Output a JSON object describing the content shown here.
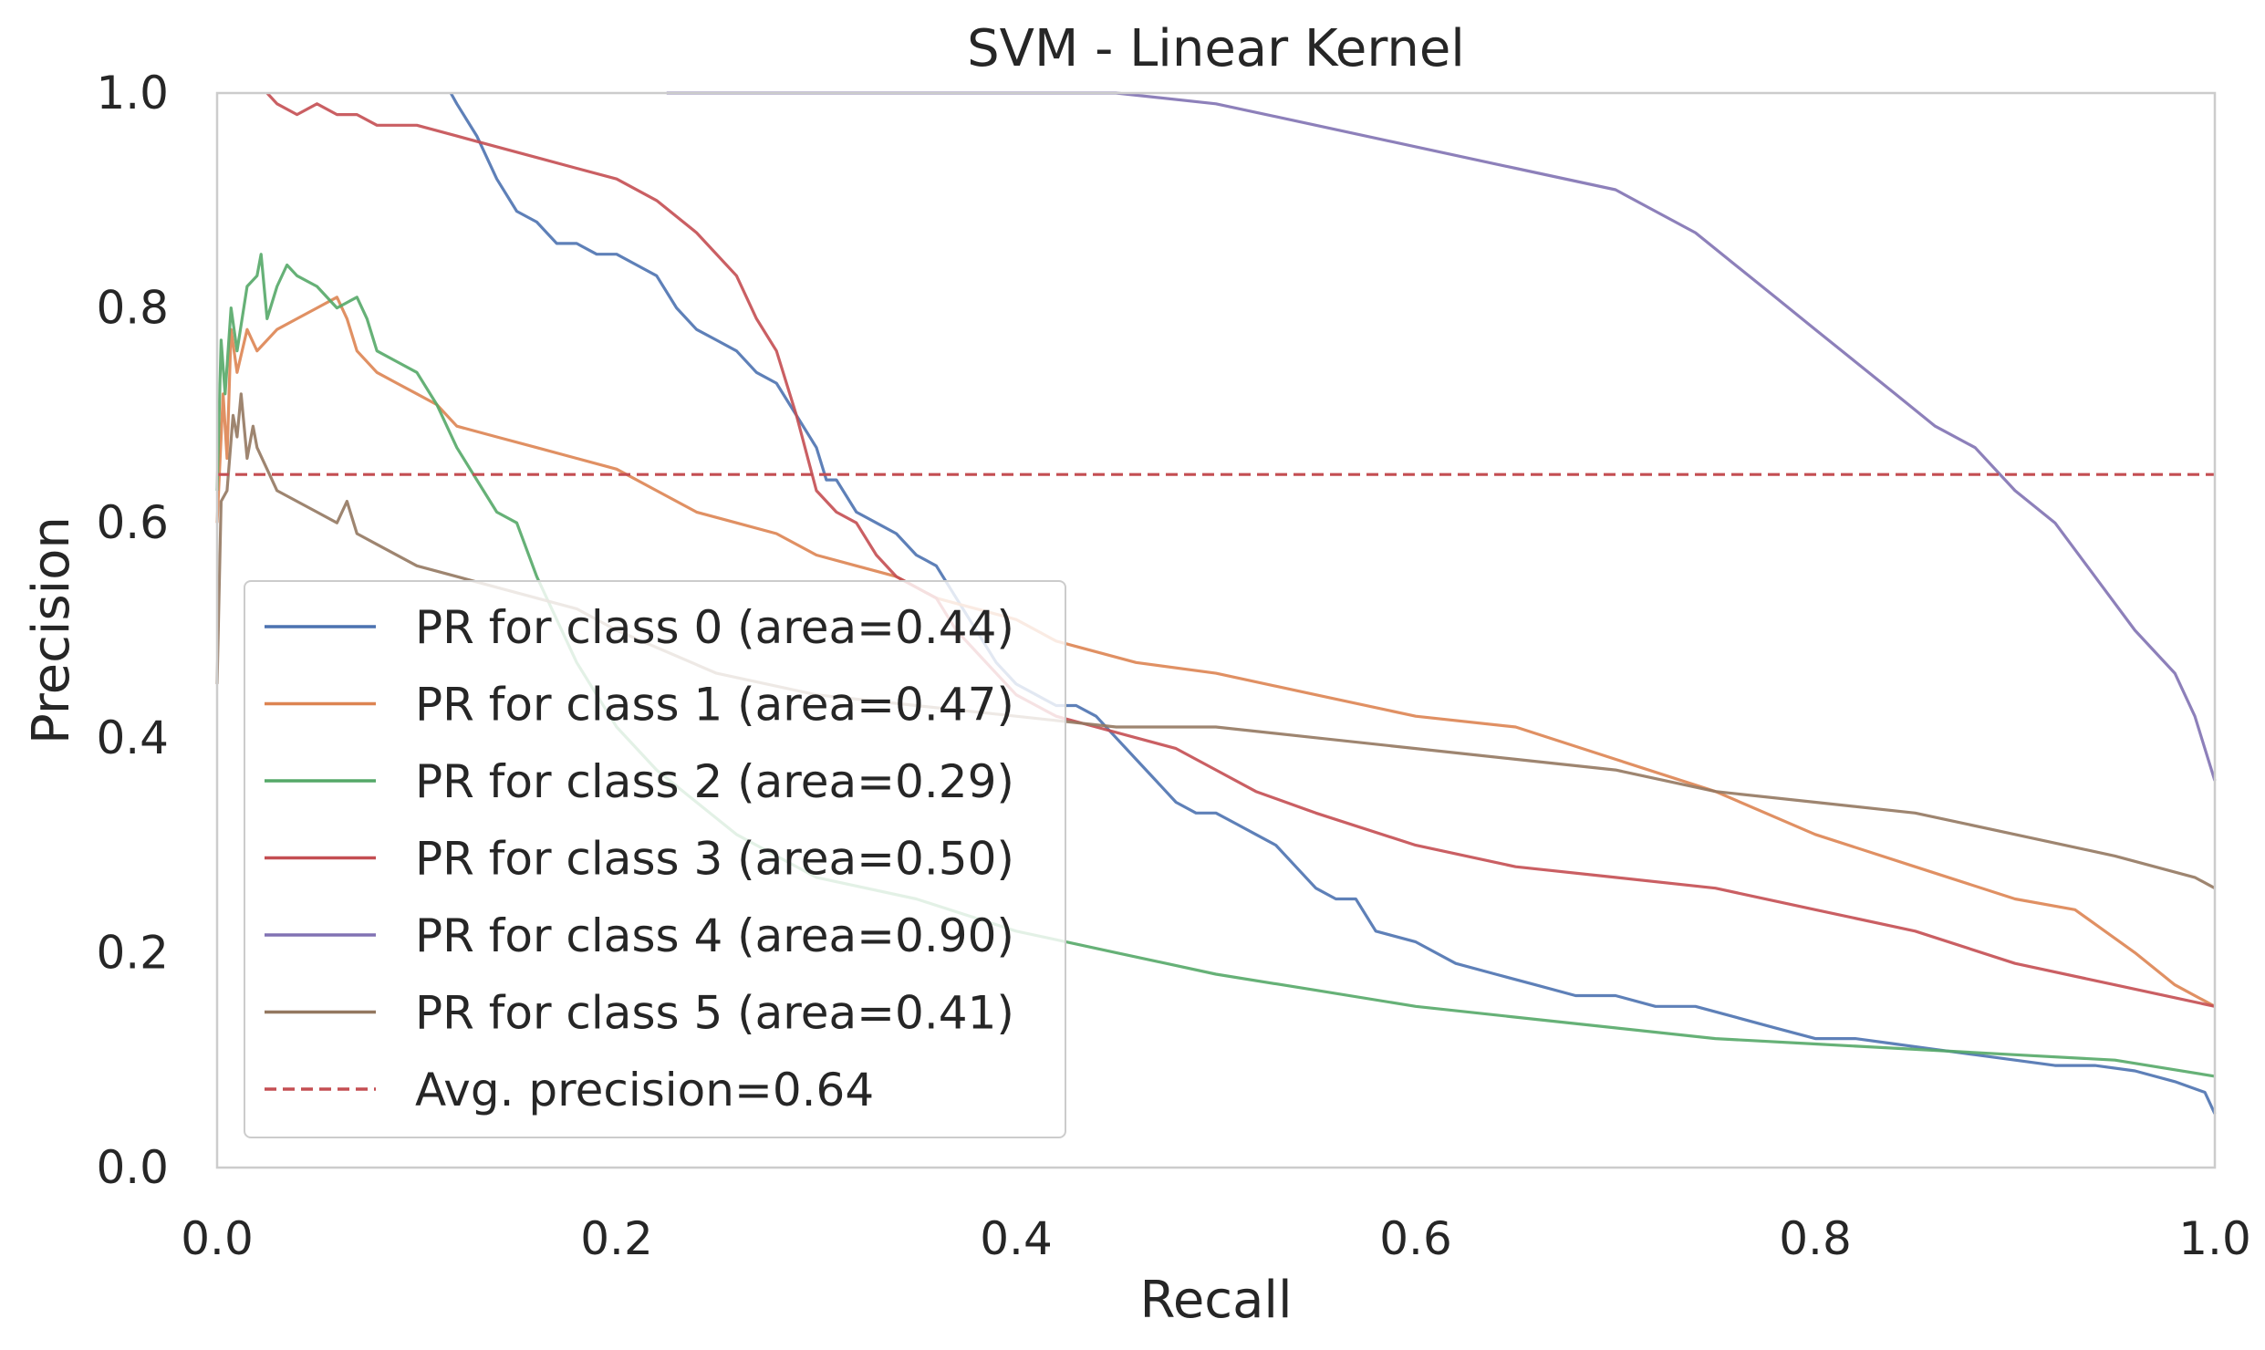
{
  "chart_data": {
    "type": "line",
    "title": "SVM - Linear Kernel",
    "xlabel": "Recall",
    "ylabel": "Precision",
    "xlim": [
      0.0,
      1.0
    ],
    "ylim": [
      0.0,
      1.0
    ],
    "grid": false,
    "legend_position": "lower-left",
    "x_ticks": [
      {
        "value": 0.0,
        "label": "0.0"
      },
      {
        "value": 0.2,
        "label": "0.2"
      },
      {
        "value": 0.4,
        "label": "0.4"
      },
      {
        "value": 0.6,
        "label": "0.6"
      },
      {
        "value": 0.8,
        "label": "0.8"
      },
      {
        "value": 1.0,
        "label": "1.0"
      }
    ],
    "y_ticks": [
      {
        "value": 0.0,
        "label": "0.0"
      },
      {
        "value": 0.2,
        "label": "0.2"
      },
      {
        "value": 0.4,
        "label": "0.4"
      },
      {
        "value": 0.6,
        "label": "0.6"
      },
      {
        "value": 0.8,
        "label": "0.8"
      },
      {
        "value": 1.0,
        "label": "1.0"
      }
    ],
    "series": [
      {
        "name": "PR for class 0 (area=0.44)",
        "color": "#4c72b0",
        "x": [
          0.117,
          0.12,
          0.13,
          0.14,
          0.15,
          0.16,
          0.17,
          0.18,
          0.19,
          0.2,
          0.21,
          0.22,
          0.23,
          0.24,
          0.25,
          0.26,
          0.27,
          0.28,
          0.29,
          0.3,
          0.305,
          0.31,
          0.32,
          0.33,
          0.34,
          0.35,
          0.36,
          0.37,
          0.38,
          0.39,
          0.4,
          0.41,
          0.42,
          0.43,
          0.44,
          0.45,
          0.46,
          0.47,
          0.48,
          0.49,
          0.5,
          0.51,
          0.52,
          0.53,
          0.54,
          0.55,
          0.56,
          0.57,
          0.58,
          0.6,
          0.62,
          0.64,
          0.66,
          0.68,
          0.7,
          0.72,
          0.74,
          0.76,
          0.78,
          0.8,
          0.82,
          0.84,
          0.86,
          0.88,
          0.9,
          0.92,
          0.94,
          0.96,
          0.98,
          0.995,
          1.0
        ],
        "y": [
          1.0,
          0.99,
          0.96,
          0.92,
          0.89,
          0.88,
          0.86,
          0.86,
          0.85,
          0.85,
          0.84,
          0.83,
          0.8,
          0.78,
          0.77,
          0.76,
          0.74,
          0.73,
          0.7,
          0.67,
          0.64,
          0.64,
          0.61,
          0.6,
          0.59,
          0.57,
          0.56,
          0.53,
          0.5,
          0.47,
          0.45,
          0.44,
          0.43,
          0.43,
          0.42,
          0.4,
          0.38,
          0.36,
          0.34,
          0.33,
          0.33,
          0.32,
          0.31,
          0.3,
          0.28,
          0.26,
          0.25,
          0.25,
          0.22,
          0.21,
          0.19,
          0.18,
          0.17,
          0.16,
          0.16,
          0.15,
          0.15,
          0.14,
          0.13,
          0.12,
          0.12,
          0.115,
          0.11,
          0.105,
          0.1,
          0.095,
          0.095,
          0.09,
          0.08,
          0.07,
          0.05
        ]
      },
      {
        "name": "PR for class 1 (area=0.47)",
        "color": "#dd8452",
        "x": [
          0.0,
          0.003,
          0.005,
          0.007,
          0.01,
          0.015,
          0.02,
          0.03,
          0.04,
          0.05,
          0.06,
          0.065,
          0.07,
          0.08,
          0.09,
          0.1,
          0.11,
          0.12,
          0.14,
          0.16,
          0.18,
          0.2,
          0.22,
          0.24,
          0.26,
          0.28,
          0.3,
          0.32,
          0.34,
          0.36,
          0.38,
          0.4,
          0.42,
          0.44,
          0.46,
          0.5,
          0.55,
          0.6,
          0.65,
          0.7,
          0.75,
          0.8,
          0.85,
          0.9,
          0.93,
          0.96,
          0.98,
          1.0
        ],
        "y": [
          0.6,
          0.72,
          0.66,
          0.78,
          0.74,
          0.78,
          0.76,
          0.78,
          0.79,
          0.8,
          0.81,
          0.79,
          0.76,
          0.74,
          0.73,
          0.72,
          0.71,
          0.69,
          0.68,
          0.67,
          0.66,
          0.65,
          0.63,
          0.61,
          0.6,
          0.59,
          0.57,
          0.56,
          0.55,
          0.53,
          0.52,
          0.51,
          0.49,
          0.48,
          0.47,
          0.46,
          0.44,
          0.42,
          0.41,
          0.38,
          0.35,
          0.31,
          0.28,
          0.25,
          0.24,
          0.2,
          0.17,
          0.15
        ]
      },
      {
        "name": "PR for class 2 (area=0.29)",
        "color": "#55a868",
        "x": [
          0.0,
          0.002,
          0.004,
          0.007,
          0.01,
          0.015,
          0.02,
          0.022,
          0.025,
          0.03,
          0.035,
          0.04,
          0.05,
          0.06,
          0.07,
          0.075,
          0.08,
          0.09,
          0.1,
          0.11,
          0.12,
          0.13,
          0.14,
          0.15,
          0.16,
          0.17,
          0.18,
          0.19,
          0.2,
          0.22,
          0.24,
          0.26,
          0.28,
          0.3,
          0.35,
          0.4,
          0.45,
          0.5,
          0.55,
          0.6,
          0.65,
          0.7,
          0.75,
          0.8,
          0.85,
          0.9,
          0.95,
          1.0
        ],
        "y": [
          0.63,
          0.77,
          0.72,
          0.8,
          0.76,
          0.82,
          0.83,
          0.85,
          0.79,
          0.82,
          0.84,
          0.83,
          0.82,
          0.8,
          0.81,
          0.79,
          0.76,
          0.75,
          0.74,
          0.71,
          0.67,
          0.64,
          0.61,
          0.6,
          0.55,
          0.51,
          0.47,
          0.44,
          0.41,
          0.37,
          0.34,
          0.31,
          0.29,
          0.27,
          0.25,
          0.22,
          0.2,
          0.18,
          0.165,
          0.15,
          0.14,
          0.13,
          0.12,
          0.115,
          0.11,
          0.105,
          0.1,
          0.085
        ]
      },
      {
        "name": "PR for class 3 (area=0.50)",
        "color": "#c44e52",
        "x": [
          0.025,
          0.03,
          0.04,
          0.05,
          0.06,
          0.07,
          0.08,
          0.1,
          0.12,
          0.14,
          0.16,
          0.18,
          0.2,
          0.22,
          0.24,
          0.26,
          0.27,
          0.28,
          0.29,
          0.3,
          0.31,
          0.32,
          0.33,
          0.34,
          0.35,
          0.36,
          0.37,
          0.38,
          0.4,
          0.42,
          0.44,
          0.46,
          0.48,
          0.5,
          0.52,
          0.55,
          0.6,
          0.65,
          0.7,
          0.75,
          0.8,
          0.85,
          0.9,
          0.95,
          1.0
        ],
        "y": [
          1.0,
          0.99,
          0.98,
          0.99,
          0.98,
          0.98,
          0.97,
          0.97,
          0.96,
          0.95,
          0.94,
          0.93,
          0.92,
          0.9,
          0.87,
          0.83,
          0.79,
          0.76,
          0.7,
          0.63,
          0.61,
          0.6,
          0.57,
          0.55,
          0.54,
          0.53,
          0.5,
          0.48,
          0.44,
          0.42,
          0.41,
          0.4,
          0.39,
          0.37,
          0.35,
          0.33,
          0.3,
          0.28,
          0.27,
          0.26,
          0.24,
          0.22,
          0.19,
          0.17,
          0.15
        ]
      },
      {
        "name": "PR for class 4 (area=0.90)",
        "color": "#8172b3",
        "x": [
          0.225,
          0.3,
          0.4,
          0.45,
          0.5,
          0.55,
          0.6,
          0.65,
          0.7,
          0.72,
          0.74,
          0.76,
          0.78,
          0.8,
          0.82,
          0.84,
          0.86,
          0.88,
          0.9,
          0.92,
          0.94,
          0.96,
          0.98,
          0.99,
          1.0
        ],
        "y": [
          1.0,
          1.0,
          1.0,
          1.0,
          0.99,
          0.97,
          0.95,
          0.93,
          0.91,
          0.89,
          0.87,
          0.84,
          0.81,
          0.78,
          0.75,
          0.72,
          0.69,
          0.67,
          0.63,
          0.6,
          0.55,
          0.5,
          0.46,
          0.42,
          0.36
        ]
      },
      {
        "name": "PR for class 5 (area=0.41)",
        "color": "#937860",
        "x": [
          0.0,
          0.002,
          0.005,
          0.008,
          0.01,
          0.012,
          0.015,
          0.018,
          0.02,
          0.03,
          0.04,
          0.05,
          0.06,
          0.065,
          0.07,
          0.08,
          0.1,
          0.12,
          0.14,
          0.16,
          0.18,
          0.2,
          0.25,
          0.3,
          0.35,
          0.4,
          0.45,
          0.5,
          0.55,
          0.6,
          0.65,
          0.7,
          0.75,
          0.8,
          0.85,
          0.9,
          0.95,
          0.99,
          1.0
        ],
        "y": [
          0.45,
          0.62,
          0.63,
          0.7,
          0.68,
          0.72,
          0.66,
          0.69,
          0.67,
          0.63,
          0.62,
          0.61,
          0.6,
          0.62,
          0.59,
          0.58,
          0.56,
          0.55,
          0.54,
          0.53,
          0.52,
          0.5,
          0.46,
          0.44,
          0.43,
          0.42,
          0.41,
          0.41,
          0.4,
          0.39,
          0.38,
          0.37,
          0.35,
          0.34,
          0.33,
          0.31,
          0.29,
          0.27,
          0.26
        ]
      }
    ],
    "reference_line": {
      "name": "Avg. precision=0.64",
      "value": 0.645,
      "color": "#c44e52",
      "style": "dashed"
    }
  }
}
